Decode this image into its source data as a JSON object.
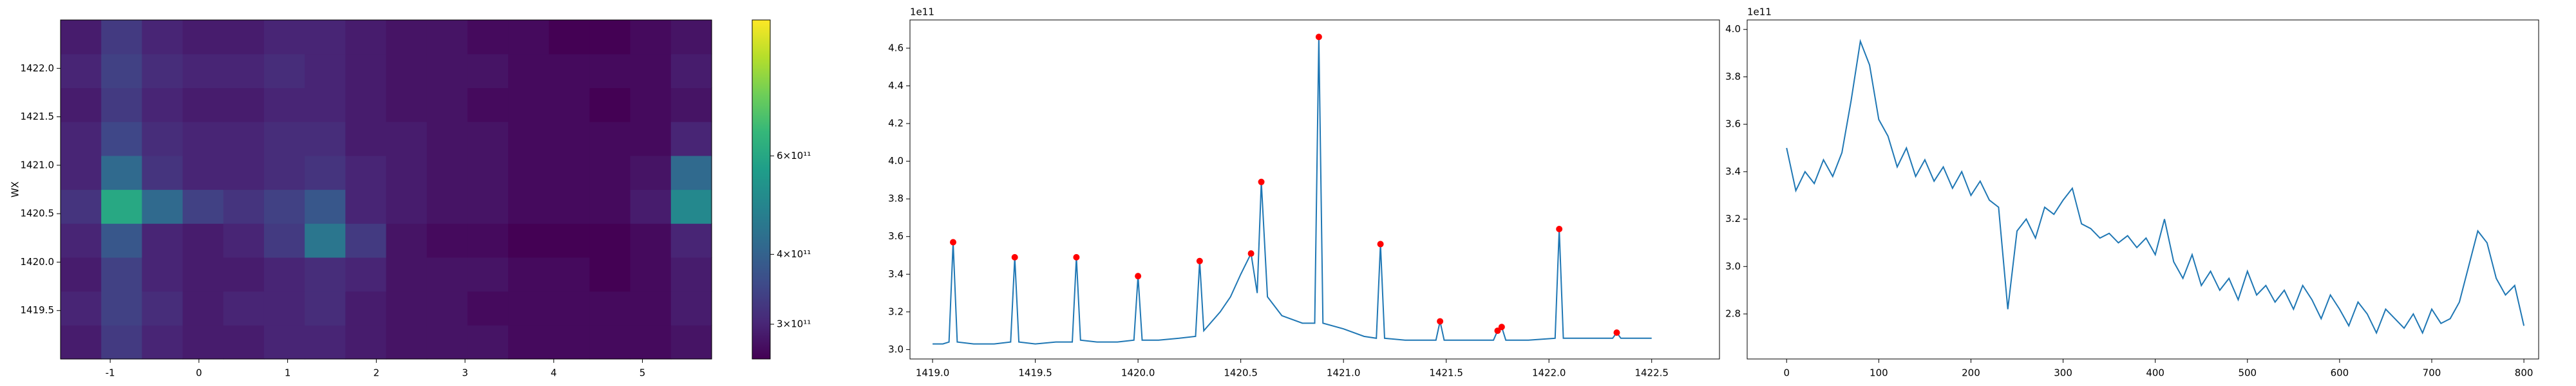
{
  "chart_data": [
    {
      "type": "heatmap",
      "ylabel": "WX",
      "xlim": [
        -1.56,
        5.78
      ],
      "ylim": [
        1419.0,
        1422.5
      ],
      "xticks": [
        -1,
        0,
        1,
        2,
        3,
        4,
        5
      ],
      "yticks": [
        1419.5,
        {
          "value": 1420.0,
          "label": "1420.0"
        },
        1420.5,
        {
          "value": 1421.0,
          "label": "1421.0"
        },
        1421.5,
        {
          "value": 1422.0,
          "label": "1422.0"
        }
      ],
      "colormap": "viridis",
      "colorbar": {
        "scale": "log",
        "lim": [
          260000000000.0,
          1050000000000.0
        ],
        "ticks": [
          {
            "value": 300000000000.0,
            "label": "3×10¹¹"
          },
          {
            "value": 400000000000.0,
            "label": "4×10¹¹"
          },
          {
            "value": 600000000000.0,
            "label": "6×10¹¹"
          }
        ]
      },
      "z": [
        [
          290000000000.0,
          330000000000.0,
          300000000000.0,
          290000000000.0,
          290000000000.0,
          300000000000.0,
          300000000000.0,
          290000000000.0,
          280000000000.0,
          280000000000.0,
          280000000000.0,
          270000000000.0,
          270000000000.0,
          270000000000.0,
          270000000000.0,
          280000000000.0
        ],
        [
          300000000000.0,
          340000000000.0,
          310000000000.0,
          290000000000.0,
          300000000000.0,
          300000000000.0,
          310000000000.0,
          290000000000.0,
          280000000000.0,
          280000000000.0,
          270000000000.0,
          270000000000.0,
          270000000000.0,
          270000000000.0,
          270000000000.0,
          290000000000.0
        ],
        [
          290000000000.0,
          340000000000.0,
          300000000000.0,
          290000000000.0,
          290000000000.0,
          300000000000.0,
          310000000000.0,
          300000000000.0,
          280000000000.0,
          280000000000.0,
          280000000000.0,
          270000000000.0,
          270000000000.0,
          260000000000.0,
          270000000000.0,
          290000000000.0
        ],
        [
          300000000000.0,
          380000000000.0,
          300000000000.0,
          290000000000.0,
          300000000000.0,
          330000000000.0,
          450000000000.0,
          330000000000.0,
          280000000000.0,
          270000000000.0,
          270000000000.0,
          260000000000.0,
          260000000000.0,
          260000000000.0,
          270000000000.0,
          300000000000.0
        ],
        [
          320000000000.0,
          600000000000.0,
          420000000000.0,
          340000000000.0,
          320000000000.0,
          340000000000.0,
          380000000000.0,
          300000000000.0,
          290000000000.0,
          280000000000.0,
          280000000000.0,
          270000000000.0,
          270000000000.0,
          270000000000.0,
          290000000000.0,
          500000000000.0
        ],
        [
          300000000000.0,
          420000000000.0,
          320000000000.0,
          300000000000.0,
          300000000000.0,
          310000000000.0,
          320000000000.0,
          300000000000.0,
          290000000000.0,
          280000000000.0,
          280000000000.0,
          270000000000.0,
          270000000000.0,
          270000000000.0,
          280000000000.0,
          420000000000.0
        ],
        [
          300000000000.0,
          350000000000.0,
          310000000000.0,
          300000000000.0,
          300000000000.0,
          310000000000.0,
          310000000000.0,
          290000000000.0,
          290000000000.0,
          280000000000.0,
          280000000000.0,
          270000000000.0,
          270000000000.0,
          270000000000.0,
          270000000000.0,
          300000000000.0
        ],
        [
          290000000000.0,
          330000000000.0,
          300000000000.0,
          290000000000.0,
          290000000000.0,
          300000000000.0,
          300000000000.0,
          290000000000.0,
          280000000000.0,
          280000000000.0,
          270000000000.0,
          270000000000.0,
          270000000000.0,
          260000000000.0,
          270000000000.0,
          280000000000.0
        ],
        [
          300000000000.0,
          340000000000.0,
          310000000000.0,
          300000000000.0,
          300000000000.0,
          310000000000.0,
          300000000000.0,
          290000000000.0,
          280000000000.0,
          280000000000.0,
          280000000000.0,
          270000000000.0,
          270000000000.0,
          270000000000.0,
          270000000000.0,
          290000000000.0
        ],
        [
          290000000000.0,
          330000000000.0,
          300000000000.0,
          290000000000.0,
          290000000000.0,
          300000000000.0,
          300000000000.0,
          290000000000.0,
          280000000000.0,
          280000000000.0,
          270000000000.0,
          270000000000.0,
          260000000000.0,
          260000000000.0,
          270000000000.0,
          280000000000.0
        ]
      ]
    },
    {
      "type": "line",
      "y_offset_label": "1e11",
      "xlim": [
        1418.89,
        1422.83
      ],
      "ylim": [
        2.95,
        4.75
      ],
      "xticks": [
        {
          "value": 1419.0,
          "label": "1419.0"
        },
        1419.5,
        {
          "value": 1420.0,
          "label": "1420.0"
        },
        1420.5,
        {
          "value": 1421.0,
          "label": "1421.0"
        },
        1421.5,
        {
          "value": 1422.0,
          "label": "1422.0"
        },
        1422.5
      ],
      "yticks": [
        {
          "value": 3.0,
          "label": "3.0"
        },
        3.2,
        3.4,
        3.6,
        3.8,
        {
          "value": 4.0,
          "label": "4.0"
        },
        4.2,
        4.4,
        4.6
      ],
      "series": [
        {
          "color": "#1f77b4",
          "x": [
            1419.0,
            1419.05,
            1419.08,
            1419.1,
            1419.12,
            1419.2,
            1419.3,
            1419.38,
            1419.4,
            1419.42,
            1419.5,
            1419.6,
            1419.68,
            1419.7,
            1419.72,
            1419.8,
            1419.9,
            1419.98,
            1420.0,
            1420.02,
            1420.1,
            1420.2,
            1420.28,
            1420.3,
            1420.32,
            1420.4,
            1420.45,
            1420.5,
            1420.55,
            1420.58,
            1420.6,
            1420.63,
            1420.7,
            1420.8,
            1420.86,
            1420.88,
            1420.9,
            1421.0,
            1421.1,
            1421.16,
            1421.18,
            1421.2,
            1421.3,
            1421.45,
            1421.47,
            1421.49,
            1421.6,
            1421.73,
            1421.75,
            1421.77,
            1421.79,
            1421.9,
            1422.03,
            1422.05,
            1422.07,
            1422.2,
            1422.31,
            1422.33,
            1422.35,
            1422.5
          ],
          "values": [
            3.03,
            3.03,
            3.04,
            3.57,
            3.04,
            3.03,
            3.03,
            3.04,
            3.49,
            3.04,
            3.03,
            3.04,
            3.04,
            3.49,
            3.05,
            3.04,
            3.04,
            3.05,
            3.39,
            3.05,
            3.05,
            3.06,
            3.07,
            3.47,
            3.1,
            3.2,
            3.28,
            3.4,
            3.51,
            3.3,
            3.89,
            3.28,
            3.18,
            3.14,
            3.14,
            4.66,
            3.14,
            3.11,
            3.07,
            3.06,
            3.56,
            3.06,
            3.05,
            3.05,
            3.15,
            3.05,
            3.05,
            3.05,
            3.1,
            3.12,
            3.05,
            3.05,
            3.06,
            3.64,
            3.06,
            3.06,
            3.06,
            3.09,
            3.06,
            3.06
          ]
        },
        {
          "color": "red",
          "marker": "dot",
          "x": [
            1419.1,
            1419.4,
            1419.7,
            1420.0,
            1420.3,
            1420.55,
            1420.6,
            1420.88,
            1421.18,
            1421.47,
            1421.75,
            1421.77,
            1422.05,
            1422.33
          ],
          "values": [
            3.57,
            3.49,
            3.49,
            3.39,
            3.47,
            3.51,
            3.89,
            4.66,
            3.56,
            3.15,
            3.1,
            3.12,
            3.64,
            3.09
          ]
        }
      ]
    },
    {
      "type": "line",
      "y_offset_label": "1e11",
      "xlim": [
        -42.8,
        816
      ],
      "ylim": [
        2.61,
        4.04
      ],
      "xticks": [
        0,
        100,
        200,
        300,
        400,
        500,
        600,
        700,
        800
      ],
      "yticks": [
        2.8,
        {
          "value": 3.0,
          "label": "3.0"
        },
        3.2,
        3.4,
        3.6,
        3.8,
        {
          "value": 4.0,
          "label": "4.0"
        }
      ],
      "series": [
        {
          "color": "#1f77b4",
          "x": [
            0,
            10,
            20,
            30,
            40,
            50,
            60,
            70,
            80,
            90,
            100,
            110,
            120,
            130,
            140,
            150,
            160,
            170,
            180,
            190,
            200,
            210,
            220,
            230,
            240,
            250,
            260,
            270,
            280,
            290,
            300,
            310,
            320,
            330,
            340,
            350,
            360,
            370,
            380,
            390,
            400,
            410,
            420,
            430,
            440,
            450,
            460,
            470,
            480,
            490,
            500,
            510,
            520,
            530,
            540,
            550,
            560,
            570,
            580,
            590,
            600,
            610,
            620,
            630,
            640,
            650,
            660,
            670,
            680,
            690,
            700,
            710,
            720,
            730,
            740,
            750,
            760,
            770,
            780,
            790,
            800
          ],
          "values": [
            3.5,
            3.32,
            3.4,
            3.35,
            3.45,
            3.38,
            3.48,
            3.7,
            3.95,
            3.85,
            3.62,
            3.55,
            3.42,
            3.5,
            3.38,
            3.45,
            3.36,
            3.42,
            3.33,
            3.4,
            3.3,
            3.36,
            3.28,
            3.25,
            2.82,
            3.15,
            3.2,
            3.12,
            3.25,
            3.22,
            3.28,
            3.33,
            3.18,
            3.16,
            3.12,
            3.14,
            3.1,
            3.13,
            3.08,
            3.12,
            3.05,
            3.2,
            3.02,
            2.95,
            3.05,
            2.92,
            2.98,
            2.9,
            2.95,
            2.86,
            2.98,
            2.88,
            2.92,
            2.85,
            2.9,
            2.82,
            2.92,
            2.86,
            2.78,
            2.88,
            2.82,
            2.75,
            2.85,
            2.8,
            2.72,
            2.82,
            2.78,
            2.74,
            2.8,
            2.72,
            2.82,
            2.76,
            2.78,
            2.85,
            3.0,
            3.15,
            3.1,
            2.95,
            2.88,
            2.92,
            2.75
          ]
        }
      ]
    }
  ]
}
